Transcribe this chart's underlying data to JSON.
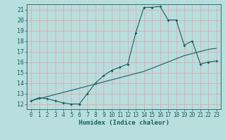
{
  "title": "",
  "xlabel": "Humidex (Indice chaleur)",
  "ylabel": "",
  "xlim": [
    -0.5,
    23.5
  ],
  "ylim": [
    11.5,
    21.5
  ],
  "xticks": [
    0,
    1,
    2,
    3,
    4,
    5,
    6,
    7,
    8,
    9,
    10,
    11,
    12,
    13,
    14,
    15,
    16,
    17,
    18,
    19,
    20,
    21,
    22,
    23
  ],
  "yticks": [
    12,
    13,
    14,
    15,
    16,
    17,
    18,
    19,
    20,
    21
  ],
  "background_color": "#b8dede",
  "grid_color": "#e8a0a8",
  "line_color": "#1a6060",
  "curve1_x": [
    0,
    1,
    2,
    3,
    4,
    5,
    6,
    7,
    8,
    9,
    10,
    11,
    12,
    13,
    14,
    15,
    16,
    17,
    18,
    19,
    20,
    21,
    22,
    23
  ],
  "curve1_y": [
    12.3,
    12.6,
    12.5,
    12.3,
    12.1,
    12.0,
    12.0,
    13.0,
    14.0,
    14.7,
    15.2,
    15.5,
    15.8,
    18.8,
    21.2,
    21.2,
    21.3,
    20.0,
    20.0,
    17.6,
    18.0,
    15.8,
    16.0,
    16.1
  ],
  "curve2_x": [
    0,
    1,
    2,
    3,
    4,
    5,
    6,
    7,
    8,
    9,
    10,
    11,
    12,
    13,
    14,
    15,
    16,
    17,
    18,
    19,
    20,
    21,
    22,
    23
  ],
  "curve2_y": [
    12.3,
    12.5,
    12.7,
    12.9,
    13.1,
    13.3,
    13.5,
    13.7,
    13.9,
    14.1,
    14.3,
    14.5,
    14.7,
    14.9,
    15.1,
    15.4,
    15.7,
    16.0,
    16.3,
    16.6,
    16.8,
    17.0,
    17.2,
    17.3
  ],
  "tick_fontsize": 5.5,
  "xlabel_fontsize": 6.5,
  "marker": "D",
  "markersize": 2.0,
  "linewidth": 0.8
}
